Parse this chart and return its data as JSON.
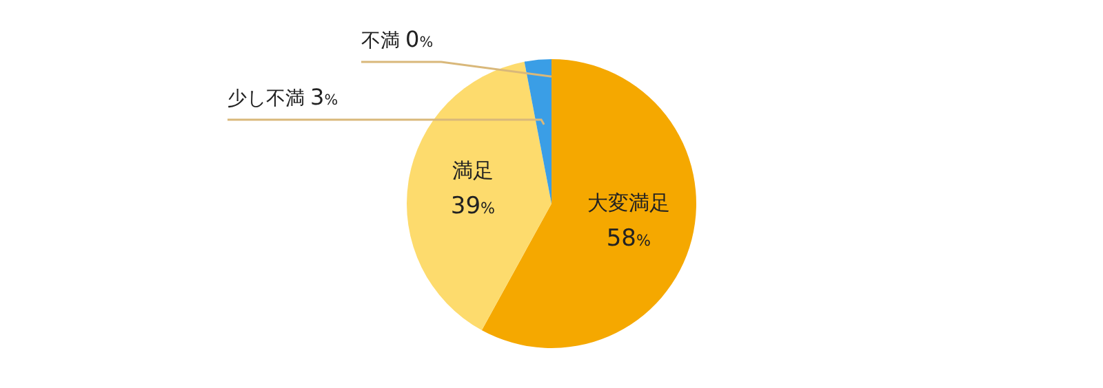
{
  "chart_data": {
    "type": "pie",
    "categories": [
      "大変満足",
      "満足",
      "少し不満",
      "不満"
    ],
    "values": [
      58,
      39,
      3,
      0
    ],
    "colors": [
      "#f5a800",
      "#fddb6d",
      "#3a9ee6",
      null
    ],
    "value_labels": [
      "58%",
      "39%",
      "3%",
      "0%"
    ]
  }
}
